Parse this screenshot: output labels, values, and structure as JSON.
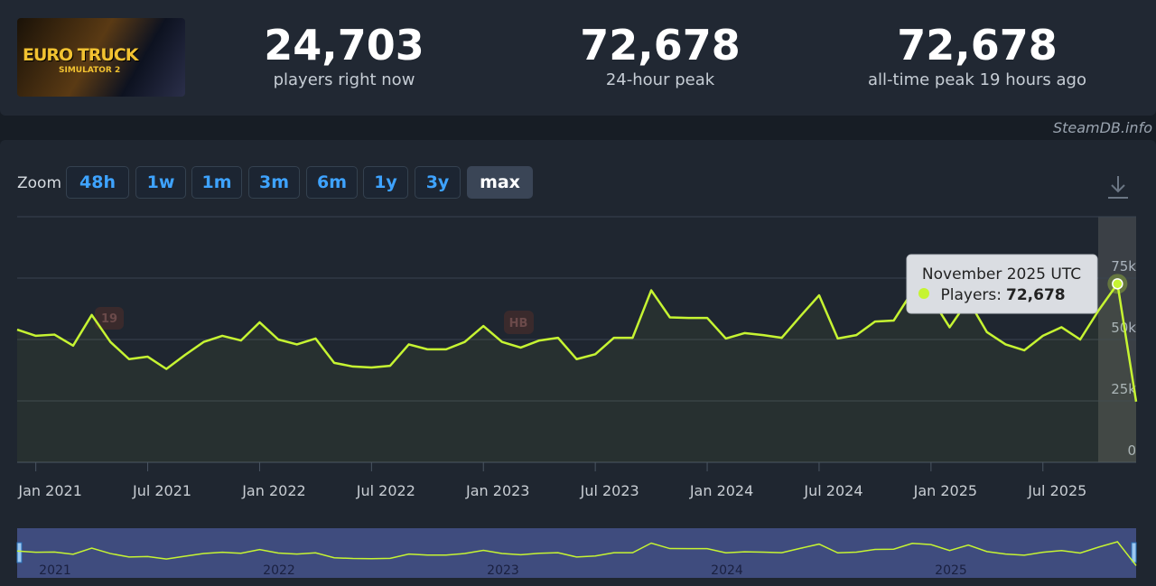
{
  "logo": {
    "title": "EURO TRUCK",
    "subtitle": "SIMULATOR 2"
  },
  "stats": [
    {
      "value": "24,703",
      "label": "players right now"
    },
    {
      "value": "72,678",
      "label": "24-hour peak"
    },
    {
      "value": "72,678",
      "label": "all-time peak 19 hours ago"
    }
  ],
  "source": "SteamDB.info",
  "zoom": {
    "label": "Zoom",
    "buttons": [
      "48h",
      "1w",
      "1m",
      "3m",
      "6m",
      "1y",
      "3y",
      "max"
    ]
  },
  "flags": [
    "19",
    "HB"
  ],
  "tooltip": {
    "title": "November 2025 UTC",
    "label": "Players:",
    "value": "72,678"
  },
  "navigator_years": [
    "2021",
    "2022",
    "2023",
    "2024",
    "2025"
  ],
  "chart_data": {
    "type": "line",
    "color": "#c6f432",
    "categories": [
      null,
      "Jan 2021",
      null,
      null,
      null,
      null,
      null,
      "Jul 2021",
      null,
      null,
      null,
      null,
      null,
      "Jan 2022",
      null,
      null,
      null,
      null,
      null,
      "Jul 2022",
      null,
      null,
      null,
      null,
      null,
      "Jan 2023",
      null,
      null,
      null,
      null,
      null,
      "Jul 2023",
      null,
      null,
      null,
      null,
      null,
      "Jan 2024",
      null,
      null,
      null,
      null,
      null,
      "Jul 2024",
      null,
      null,
      null,
      null,
      null,
      "Jan 2025",
      null,
      null,
      null,
      null,
      null,
      "Jul 2025",
      null,
      null,
      null,
      null,
      null
    ],
    "values": [
      54000,
      51500,
      52000,
      47500,
      60000,
      49000,
      42000,
      43000,
      38000,
      43700,
      49000,
      51500,
      49600,
      57000,
      50000,
      48000,
      50400,
      40500,
      39000,
      38600,
      39300,
      48000,
      46000,
      46000,
      49000,
      55500,
      49000,
      46700,
      49600,
      50700,
      42000,
      44000,
      50700,
      50700,
      70000,
      59000,
      58800,
      58800,
      50400,
      52600,
      51800,
      50700,
      59500,
      68000,
      50400,
      51800,
      57300,
      57700,
      69500,
      67000,
      55000,
      66000,
      53000,
      48000,
      45600,
      51500,
      55000,
      50000,
      62000,
      72678,
      24703
    ],
    "ylim": [
      0,
      100000
    ],
    "yticks": [
      {
        "value": 0,
        "label": "0"
      },
      {
        "value": 25000,
        "label": "25k"
      },
      {
        "value": 50000,
        "label": "50k"
      },
      {
        "value": 75000,
        "label": "75k"
      }
    ],
    "grid": true
  }
}
